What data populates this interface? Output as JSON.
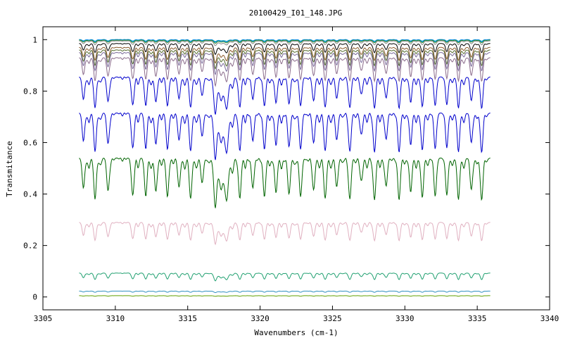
{
  "chart_data": {
    "type": "line",
    "title": "20100429_I01_148.JPG",
    "xlabel": "Wavenumbers (cm-1)",
    "ylabel": "Transmitance",
    "xlim": [
      3305,
      3340
    ],
    "ylim": [
      -0.05,
      1.05
    ],
    "x_ticks": [
      3305,
      3310,
      3315,
      3320,
      3325,
      3330,
      3335,
      3340
    ],
    "y_ticks": [
      0,
      0.2,
      0.4,
      0.6,
      0.8,
      1
    ],
    "y_tick_labels": [
      "0",
      "0.2",
      "0.4",
      "0.6",
      "0.8",
      "1"
    ],
    "grid": false,
    "legend": "none",
    "x_range_data": [
      3307.5,
      3335.9
    ],
    "line_positions_cm1": [
      3307.8,
      3308.6,
      3309.5,
      3311.2,
      3312.1,
      3312.8,
      3313.6,
      3314.4,
      3315.2,
      3316.0,
      3316.9,
      3317.7,
      3318.6,
      3319.5,
      3320.3,
      3321.1,
      3322.0,
      3322.8,
      3323.7,
      3324.5,
      3325.3,
      3326.2,
      3327.0,
      3327.9,
      3328.7,
      3329.6,
      3330.4,
      3331.2,
      3332.1,
      3332.9,
      3333.7,
      3334.6,
      3335.3
    ],
    "series": [
      {
        "color": "#00aa88",
        "baseline": 1.0,
        "depth": 0.006
      },
      {
        "color": "#0080ff",
        "baseline": 1.0,
        "depth": 0.008
      },
      {
        "color": "#228b22",
        "baseline": 0.998,
        "depth": 0.01
      },
      {
        "color": "#888888",
        "baseline": 0.995,
        "depth": 0.015
      },
      {
        "color": "#000000",
        "baseline": 0.985,
        "depth": 0.035
      },
      {
        "color": "#8b5a2b",
        "baseline": 0.97,
        "depth": 0.05
      },
      {
        "color": "#556b2f",
        "baseline": 0.96,
        "depth": 0.06
      },
      {
        "color": "#7a6a9a",
        "baseline": 0.95,
        "depth": 0.07
      },
      {
        "color": "#8a6a8a",
        "baseline": 0.93,
        "depth": 0.09
      },
      {
        "color": "#0000cc",
        "baseline": 0.855,
        "depth": 0.12
      },
      {
        "color": "#0000cc",
        "baseline": 0.715,
        "depth": 0.15
      },
      {
        "color": "#006400",
        "baseline": 0.54,
        "depth": 0.16
      },
      {
        "color": "#e0b0c0",
        "baseline": 0.29,
        "depth": 0.07
      },
      {
        "color": "#20a070",
        "baseline": 0.093,
        "depth": 0.025
      },
      {
        "color": "#3090c0",
        "baseline": 0.023,
        "depth": 0.005
      },
      {
        "color": "#60a000",
        "baseline": 0.005,
        "depth": 0.002
      }
    ]
  }
}
